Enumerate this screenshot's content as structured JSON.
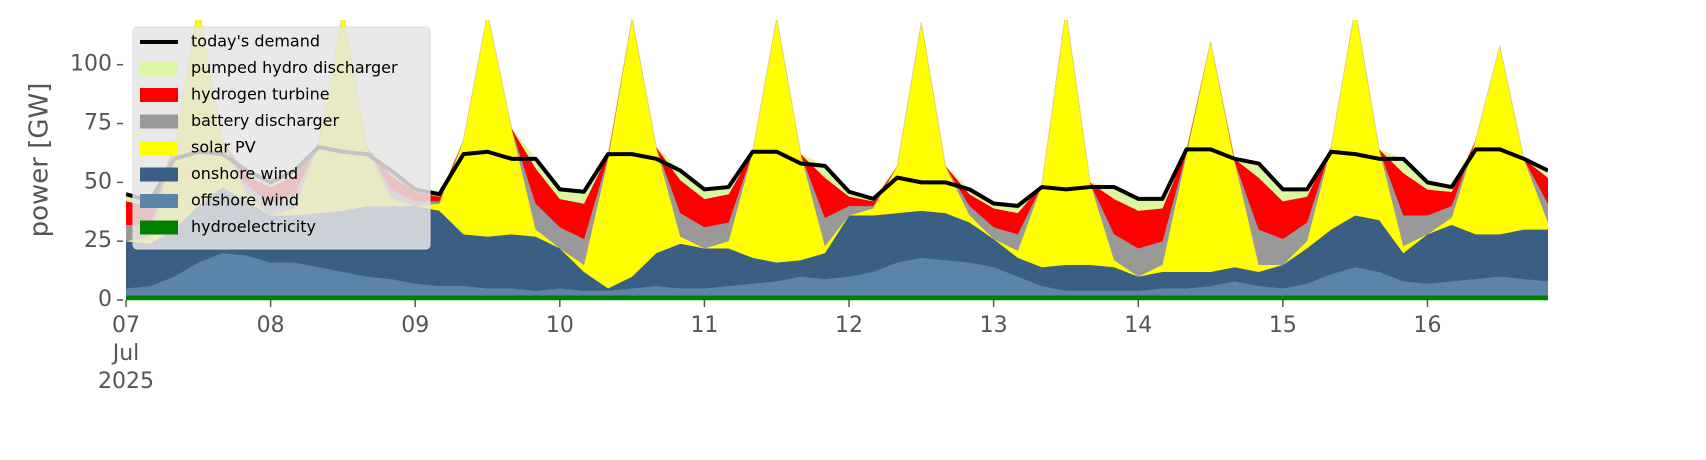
{
  "chart_data": {
    "type": "stacked_area",
    "ylabel": "power [GW]",
    "x": [
      0,
      4,
      8,
      12,
      16,
      20,
      24,
      28,
      32,
      36,
      40,
      44,
      48,
      52,
      56,
      60,
      64,
      68,
      72,
      76,
      80,
      84,
      88,
      92,
      96,
      100,
      104,
      108,
      112,
      116,
      120,
      124,
      128,
      132,
      136,
      140,
      144,
      148,
      152,
      156,
      160,
      164,
      168,
      172,
      176,
      180,
      184,
      188,
      192,
      196,
      200,
      204,
      208,
      212,
      216,
      220,
      224,
      228,
      232,
      236
    ],
    "xlim": [
      0,
      236
    ],
    "xticks": [
      {
        "value": 0,
        "label": "07\nJul\n2025"
      },
      {
        "value": 24,
        "label": "08"
      },
      {
        "value": 48,
        "label": "09"
      },
      {
        "value": 72,
        "label": "10"
      },
      {
        "value": 96,
        "label": "11"
      },
      {
        "value": 120,
        "label": "12"
      },
      {
        "value": 144,
        "label": "13"
      },
      {
        "value": 168,
        "label": "14"
      },
      {
        "value": 192,
        "label": "15"
      },
      {
        "value": 216,
        "label": "16"
      }
    ],
    "ylim": [
      0,
      119
    ],
    "yticks": [
      0,
      25,
      50,
      75,
      100
    ],
    "legend": "upper left",
    "demand": {
      "name": "today's demand",
      "color": "#000000",
      "values": [
        45,
        42,
        60,
        63,
        62,
        55,
        50,
        55,
        65,
        63,
        62,
        55,
        47,
        45,
        62,
        63,
        60,
        60,
        47,
        46,
        62,
        62,
        60,
        55,
        47,
        48,
        63,
        63,
        58,
        57,
        46,
        43,
        52,
        50,
        50,
        47,
        41,
        40,
        48,
        47,
        48,
        48,
        43,
        43,
        64,
        64,
        60,
        58,
        47,
        47,
        63,
        62,
        60,
        60,
        50,
        48,
        64,
        64,
        60,
        55
      ]
    },
    "series": [
      {
        "name": "hydroelectricity",
        "color": "#008000",
        "values": [
          2,
          2,
          2,
          2,
          2,
          2,
          2,
          2,
          2,
          2,
          2,
          2,
          2,
          2,
          2,
          2,
          2,
          2,
          2,
          2,
          2,
          2,
          2,
          2,
          2,
          2,
          2,
          2,
          2,
          2,
          2,
          2,
          2,
          2,
          2,
          2,
          2,
          2,
          2,
          2,
          2,
          2,
          2,
          2,
          2,
          2,
          2,
          2,
          2,
          2,
          2,
          2,
          2,
          2,
          2,
          2,
          2,
          2,
          2,
          2
        ]
      },
      {
        "name": "offshore wind",
        "color": "#5b84a8",
        "values": [
          3,
          4,
          8,
          14,
          18,
          17,
          14,
          14,
          12,
          10,
          8,
          7,
          5,
          4,
          4,
          3,
          3,
          2,
          3,
          2,
          2,
          3,
          4,
          3,
          3,
          4,
          5,
          6,
          8,
          7,
          8,
          10,
          14,
          16,
          15,
          14,
          12,
          8,
          4,
          2,
          2,
          2,
          2,
          3,
          3,
          4,
          6,
          4,
          3,
          5,
          9,
          12,
          10,
          6,
          5,
          6,
          7,
          8,
          7,
          6
        ]
      },
      {
        "name": "onshore wind",
        "color": "#3b5f82",
        "values": [
          20,
          18,
          20,
          24,
          28,
          23,
          20,
          20,
          23,
          26,
          30,
          31,
          33,
          32,
          22,
          22,
          23,
          23,
          17,
          8,
          1,
          5,
          14,
          19,
          17,
          16,
          11,
          8,
          7,
          11,
          26,
          24,
          21,
          20,
          20,
          17,
          12,
          8,
          8,
          11,
          11,
          10,
          6,
          7,
          7,
          6,
          6,
          6,
          10,
          15,
          19,
          22,
          22,
          12,
          21,
          24,
          19,
          18,
          21,
          22
        ]
      },
      {
        "name": "solar PV",
        "color": "#ffff00",
        "values": [
          0,
          3,
          35,
          85,
          20,
          3,
          0,
          3,
          30,
          85,
          25,
          3,
          0,
          3,
          40,
          95,
          45,
          3,
          0,
          3,
          55,
          110,
          45,
          3,
          0,
          3,
          45,
          104,
          45,
          3,
          0,
          3,
          20,
          80,
          20,
          3,
          0,
          3,
          35,
          108,
          35,
          3,
          0,
          3,
          50,
          98,
          45,
          3,
          0,
          3,
          35,
          88,
          30,
          3,
          0,
          3,
          40,
          80,
          30,
          3
        ]
      },
      {
        "name": "battery discharger",
        "color": "#999999",
        "values": [
          7,
          5,
          0,
          0,
          0,
          4,
          5,
          6,
          0,
          0,
          0,
          4,
          2,
          1,
          0,
          0,
          0,
          11,
          9,
          11,
          1,
          0,
          0,
          10,
          9,
          8,
          0,
          0,
          0,
          12,
          4,
          1,
          0,
          0,
          0,
          4,
          5,
          7,
          0,
          0,
          0,
          11,
          12,
          10,
          1,
          0,
          0,
          15,
          11,
          8,
          0,
          0,
          0,
          13,
          8,
          5,
          0,
          0,
          0,
          8
        ]
      },
      {
        "name": "hydrogen turbine",
        "color": "#ff0000",
        "values": [
          10,
          8,
          0,
          0,
          0,
          4,
          7,
          8,
          0,
          0,
          0,
          6,
          4,
          2,
          0,
          0,
          0,
          15,
          12,
          15,
          1,
          0,
          0,
          14,
          12,
          12,
          0,
          0,
          0,
          17,
          4,
          2,
          0,
          0,
          0,
          5,
          8,
          9,
          0,
          0,
          0,
          15,
          16,
          14,
          1,
          0,
          1,
          22,
          16,
          11,
          0,
          0,
          0,
          18,
          11,
          6,
          0,
          0,
          0,
          11
        ]
      },
      {
        "name": "pumped hydro discharger",
        "color": "#dcf7a3",
        "values": [
          3,
          2,
          0,
          0,
          0,
          2,
          2,
          2,
          0,
          0,
          0,
          2,
          1,
          1,
          0,
          0,
          0,
          4,
          4,
          5,
          0,
          0,
          0,
          4,
          4,
          3,
          0,
          0,
          0,
          5,
          2,
          1,
          0,
          0,
          0,
          2,
          2,
          3,
          0,
          0,
          0,
          5,
          5,
          4,
          0,
          0,
          0,
          6,
          5,
          3,
          0,
          0,
          0,
          6,
          3,
          2,
          0,
          0,
          0,
          3
        ]
      }
    ]
  }
}
